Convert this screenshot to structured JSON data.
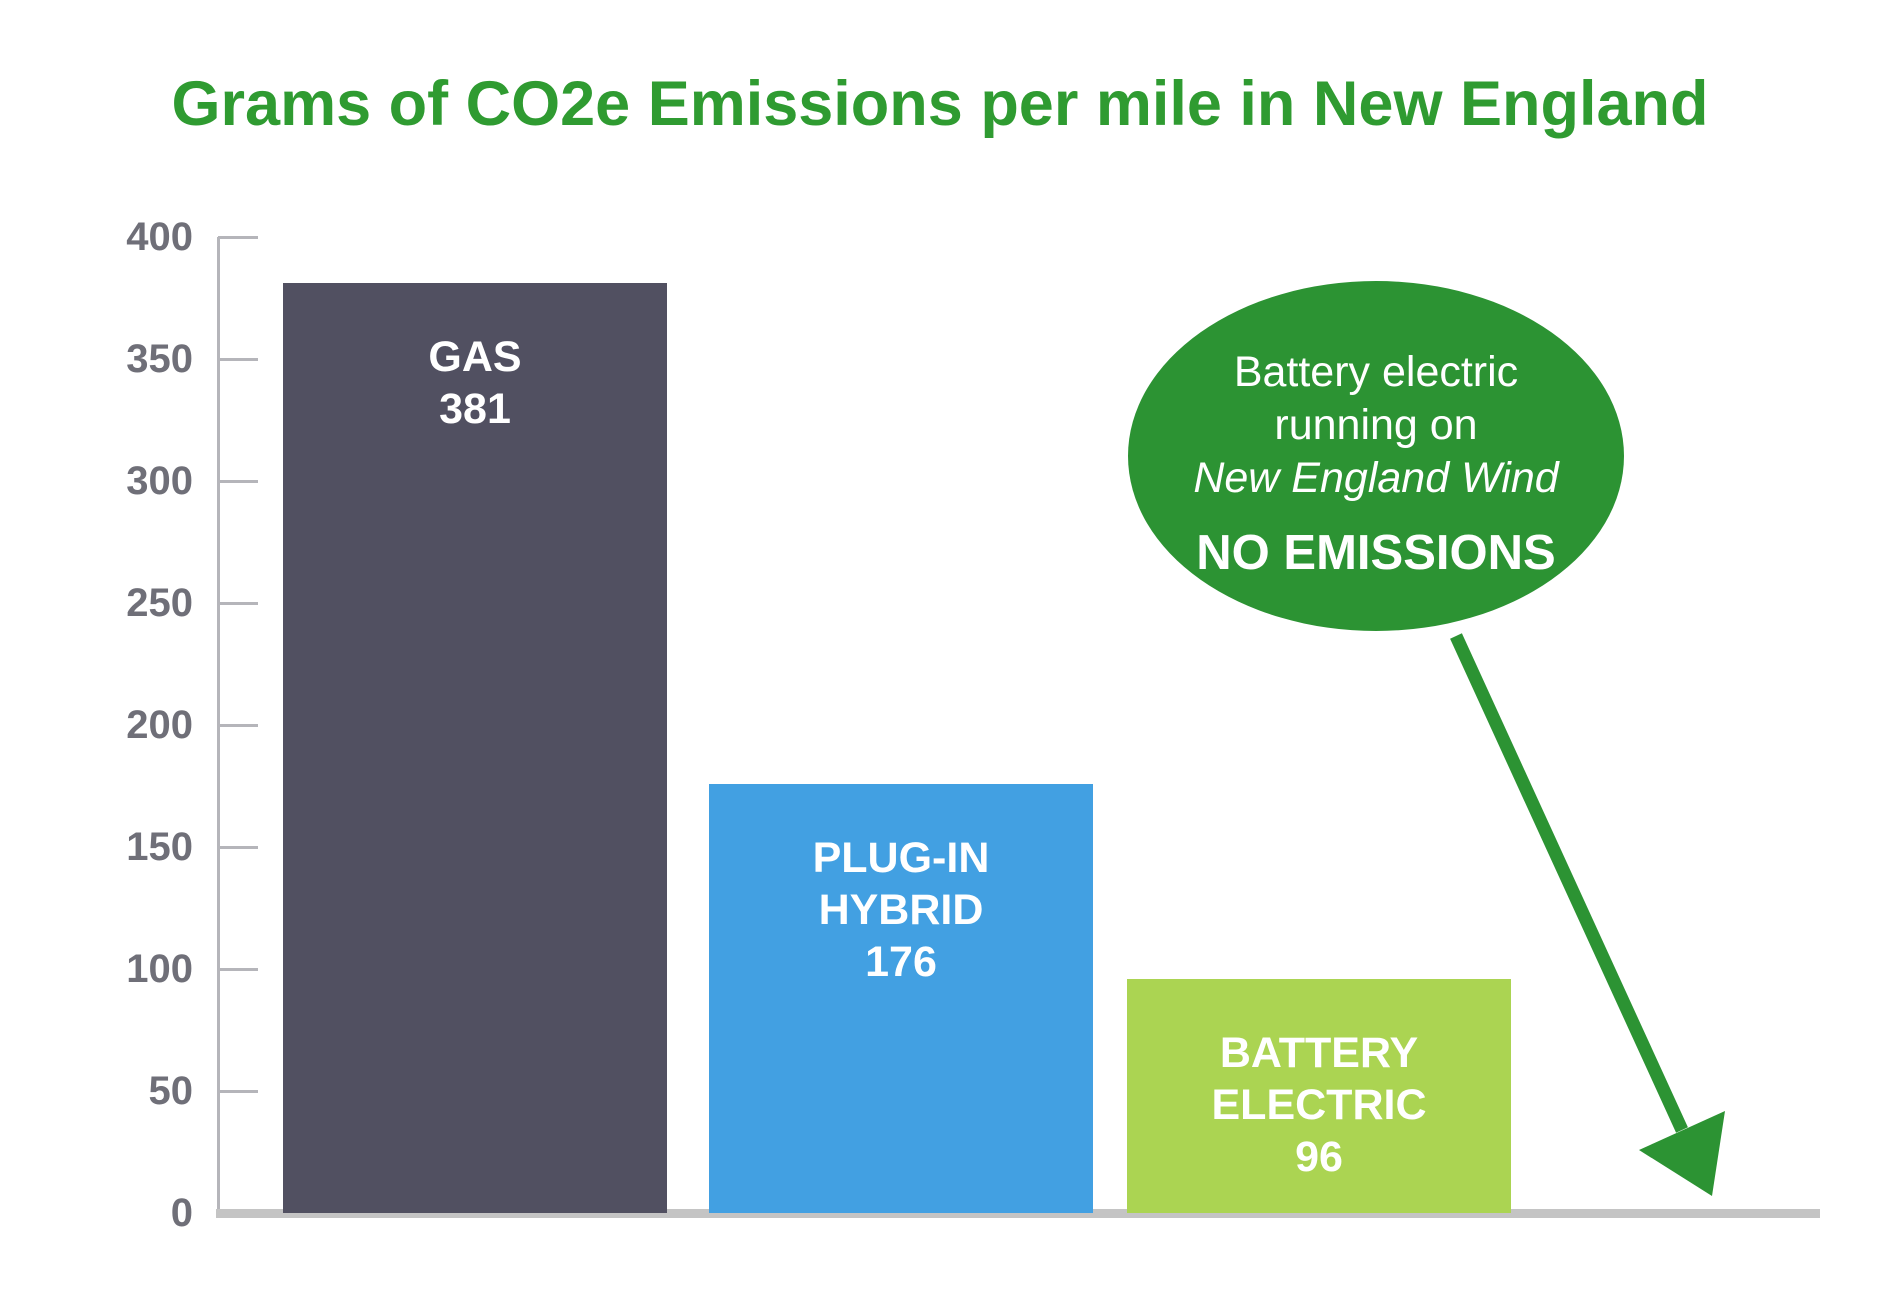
{
  "title": {
    "text": "Grams of CO2e Emissions per mile in New England",
    "color": "#2f9b31"
  },
  "chart_data": {
    "type": "bar",
    "title": "Grams of CO2e Emissions per mile in New England",
    "categories": [
      "GAS",
      "PLUG-IN HYBRID",
      "BATTERY ELECTRIC"
    ],
    "values": [
      381,
      176,
      96
    ],
    "bar_label_lines": [
      [
        "GAS",
        "381"
      ],
      [
        "PLUG-IN",
        "HYBRID",
        "176"
      ],
      [
        "BATTERY",
        "ELECTRIC",
        "96"
      ]
    ],
    "bar_colors": [
      "#515061",
      "#42a0e2",
      "#abd452"
    ],
    "value_label_color": "#ffffff",
    "xlabel": "",
    "ylabel": "",
    "ylim": [
      0,
      400
    ],
    "yticks": [
      400,
      350,
      300,
      250,
      200,
      150,
      100,
      50,
      0
    ],
    "grid": false,
    "legend": false,
    "annotation": {
      "lines": [
        "Battery electric",
        "running on",
        "New England Wind",
        "NO EMISSIONS"
      ],
      "value": "NO EMISSIONS"
    }
  },
  "axis": {
    "tick_label_color": "#6f6f78",
    "line_color": "#b5b5ba",
    "baseline_color": "#c4c4c4"
  },
  "annotation_bubble": {
    "line1": "Battery electric",
    "line2": "running on",
    "line3": "New England Wind",
    "line4": "NO EMISSIONS",
    "fill_color": "#2c9333",
    "text_color": "#ffffff"
  },
  "arrow": {
    "color": "#2c9333"
  }
}
